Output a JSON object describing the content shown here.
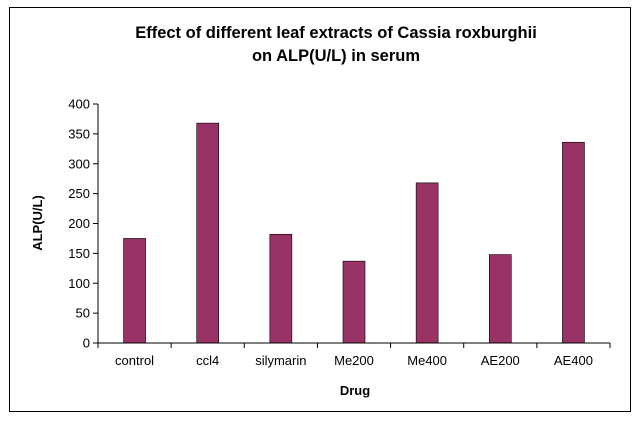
{
  "chart_data": {
    "type": "bar",
    "title_lines": [
      "Effect of different leaf extracts of Cassia roxburghii",
      "on ALP(U/L) in serum"
    ],
    "xlabel": "Drug",
    "ylabel": "ALP(U/L)",
    "categories": [
      "control",
      "ccl4",
      "silymarin",
      "Me200",
      "Me400",
      "AE200",
      "AE400"
    ],
    "values": [
      175,
      368,
      182,
      137,
      268,
      148,
      336
    ],
    "ylim": [
      0,
      400
    ],
    "yticks": [
      0,
      50,
      100,
      150,
      200,
      250,
      300,
      350,
      400
    ],
    "bar_color": "#993366",
    "grid": false,
    "legend": "none"
  }
}
